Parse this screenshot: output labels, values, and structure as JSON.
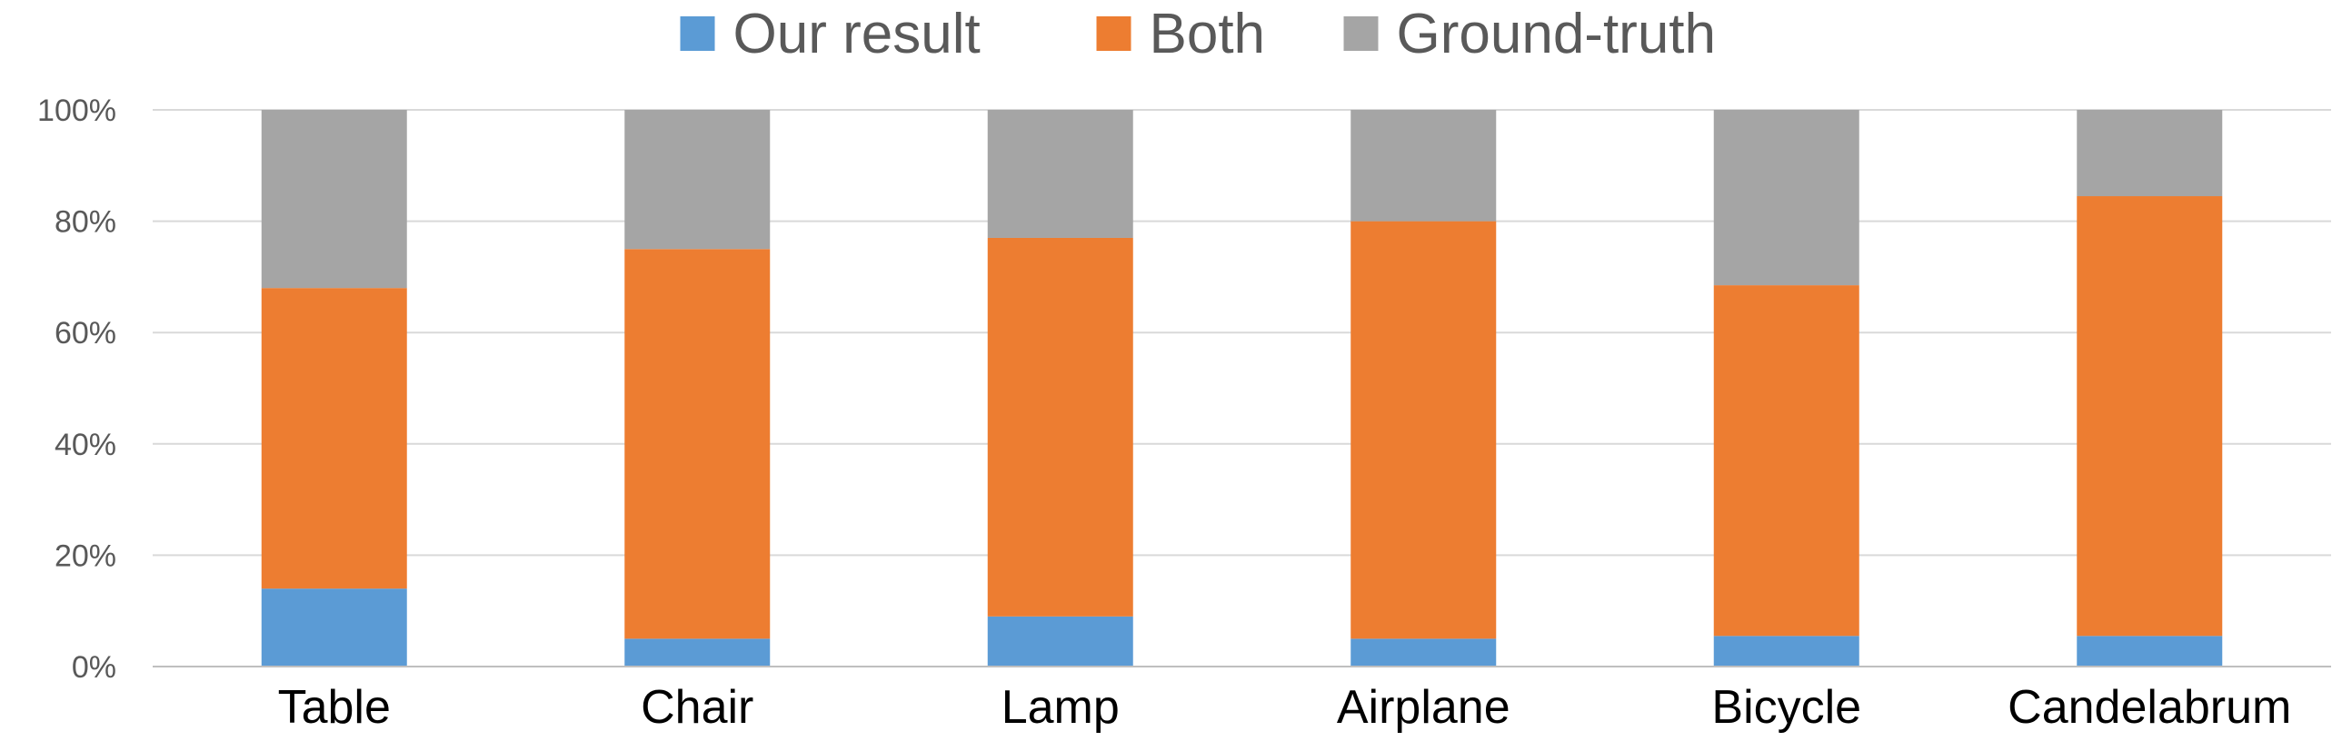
{
  "chart_data": {
    "type": "bar",
    "stacked": true,
    "percent": true,
    "title": "",
    "xlabel": "",
    "ylabel": "",
    "ylim": [
      0,
      100
    ],
    "yticks": [
      "0%",
      "20%",
      "40%",
      "60%",
      "80%",
      "100%"
    ],
    "categories": [
      "Table",
      "Chair",
      "Lamp",
      "Airplane",
      "Bicycle",
      "Candelabrum"
    ],
    "series": [
      {
        "name": "Our result",
        "color": "#5b9bd5",
        "values": [
          14,
          5,
          9,
          5,
          5.5,
          5.5
        ]
      },
      {
        "name": "Both",
        "color": "#ed7d31",
        "values": [
          54,
          70,
          68,
          75,
          63,
          79
        ]
      },
      {
        "name": "Ground-truth",
        "color": "#a5a5a5",
        "values": [
          32,
          25,
          23,
          20,
          31.5,
          15.5
        ]
      }
    ],
    "legend_position": "top",
    "grid": true
  }
}
